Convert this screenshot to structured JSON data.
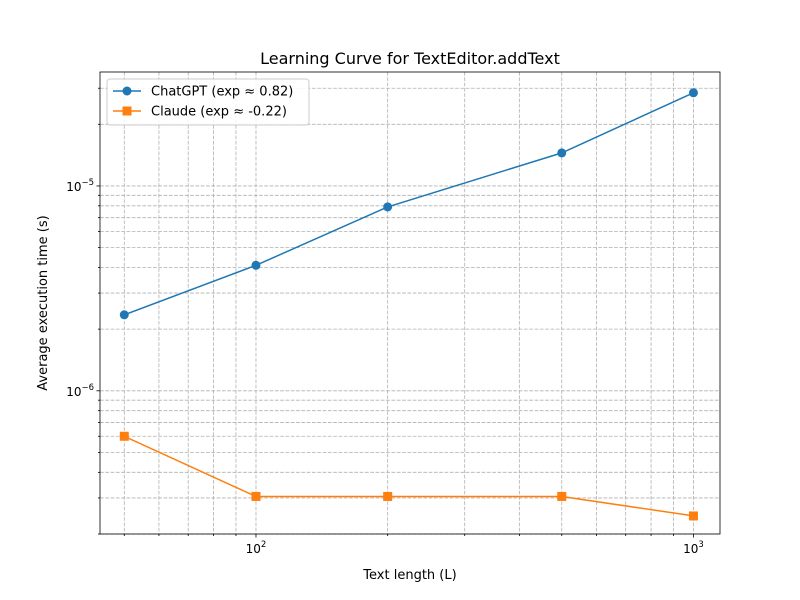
{
  "chart_data": {
    "type": "line",
    "title": "Learning Curve for TextEditor.addText",
    "xlabel": "Text length (L)",
    "ylabel": "Average execution time (s)",
    "x_scale": "log",
    "y_scale": "log",
    "xlim": [
      44,
      1150
    ],
    "ylim": [
      2e-07,
      3.6e-05
    ],
    "x_ticks": [
      {
        "value": 100,
        "label": "10",
        "exp": "2"
      },
      {
        "value": 1000,
        "label": "10",
        "exp": "3"
      }
    ],
    "y_ticks": [
      {
        "value": 1e-06,
        "label": "10",
        "exp": "−6"
      },
      {
        "value": 1e-05,
        "label": "10",
        "exp": "−5"
      }
    ],
    "grid": true,
    "legend_position": "upper-left",
    "x": [
      50,
      100,
      200,
      500,
      1000
    ],
    "series": [
      {
        "name": "ChatGPT (exp ≈ 0.82)",
        "color": "#1f77b4",
        "marker": "circle",
        "values": [
          2.35e-06,
          4.1e-06,
          7.9e-06,
          1.45e-05,
          2.85e-05
        ]
      },
      {
        "name": "Claude (exp ≈ -0.22)",
        "color": "#ff7f0e",
        "marker": "square",
        "values": [
          6e-07,
          3.05e-07,
          3.05e-07,
          3.05e-07,
          2.45e-07
        ]
      }
    ]
  }
}
